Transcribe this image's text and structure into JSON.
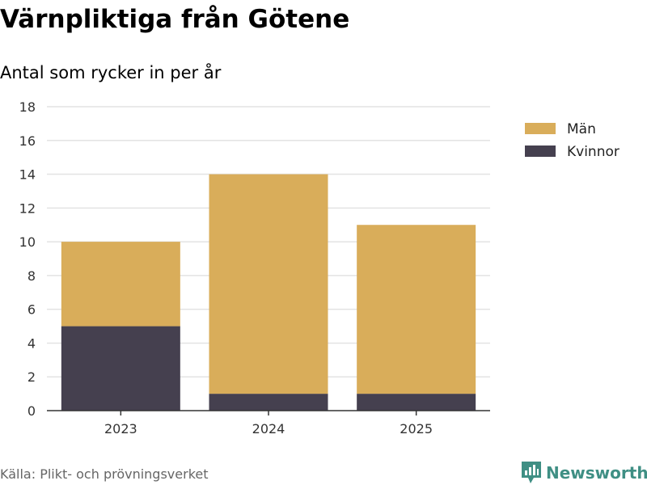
{
  "title": "Värnpliktiga från Götene",
  "subtitle": "Antal som rycker in per år",
  "source": "Källa: Plikt- och prövningsverket",
  "brand": {
    "name": "Newsworthy",
    "icon": "newsworthy-chart-logo-icon",
    "color": "#3f8f84"
  },
  "chart_data": {
    "type": "bar",
    "stacked": true,
    "categories": [
      "2023",
      "2024",
      "2025"
    ],
    "series": [
      {
        "name": "Kvinnor",
        "values": [
          5,
          1,
          1
        ],
        "color": "#45404f"
      },
      {
        "name": "Män",
        "values": [
          5,
          13,
          10
        ],
        "color": "#d9ad5a"
      }
    ],
    "ylim": [
      0,
      18
    ],
    "yticks": [
      "0",
      "2",
      "4",
      "6",
      "8",
      "10",
      "12",
      "14",
      "16",
      "18"
    ],
    "xlabel": "",
    "ylabel": "",
    "grid": true,
    "legend": {
      "placement": "top-right",
      "order": [
        "Män",
        "Kvinnor"
      ]
    }
  }
}
